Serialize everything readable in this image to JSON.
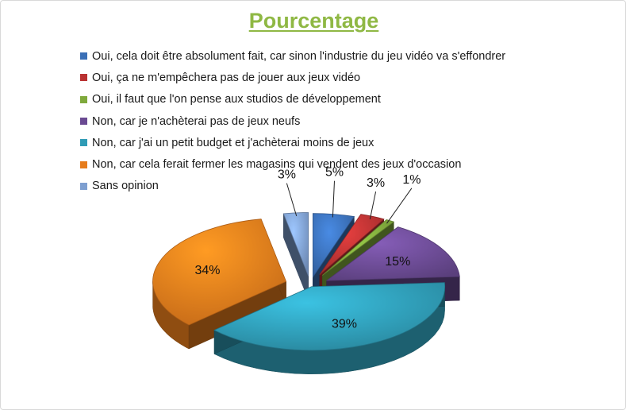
{
  "chart_data": {
    "type": "pie",
    "title": "Pourcentage",
    "categories": [
      "Oui, cela doit être absolument fait, car sinon l'industrie du jeu vidéo va s'effondrer",
      "Oui, ça ne m'empêchera pas de jouer aux jeux vidéo",
      "Oui, il faut que l'on pense aux studios de développement",
      "Non, car je n'achèterai pas de jeux neufs",
      "Non, car j'ai un petit budget et j'achèterai moins de jeux",
      "Non, car cela ferait fermer les magasins qui vendent des jeux d'occasion",
      "Sans opinion"
    ],
    "values": [
      5,
      3,
      1,
      15,
      39,
      34,
      3
    ],
    "labels": [
      "5%",
      "3%",
      "1%",
      "15%",
      "39%",
      "34%",
      "3%"
    ],
    "colors": [
      "#3a6fb6",
      "#b93232",
      "#7fa93c",
      "#6a4a92",
      "#2f9bb5",
      "#e67c1c",
      "#7e9fd0"
    ],
    "legend_position": "top-left",
    "style": "exploded-3d"
  }
}
